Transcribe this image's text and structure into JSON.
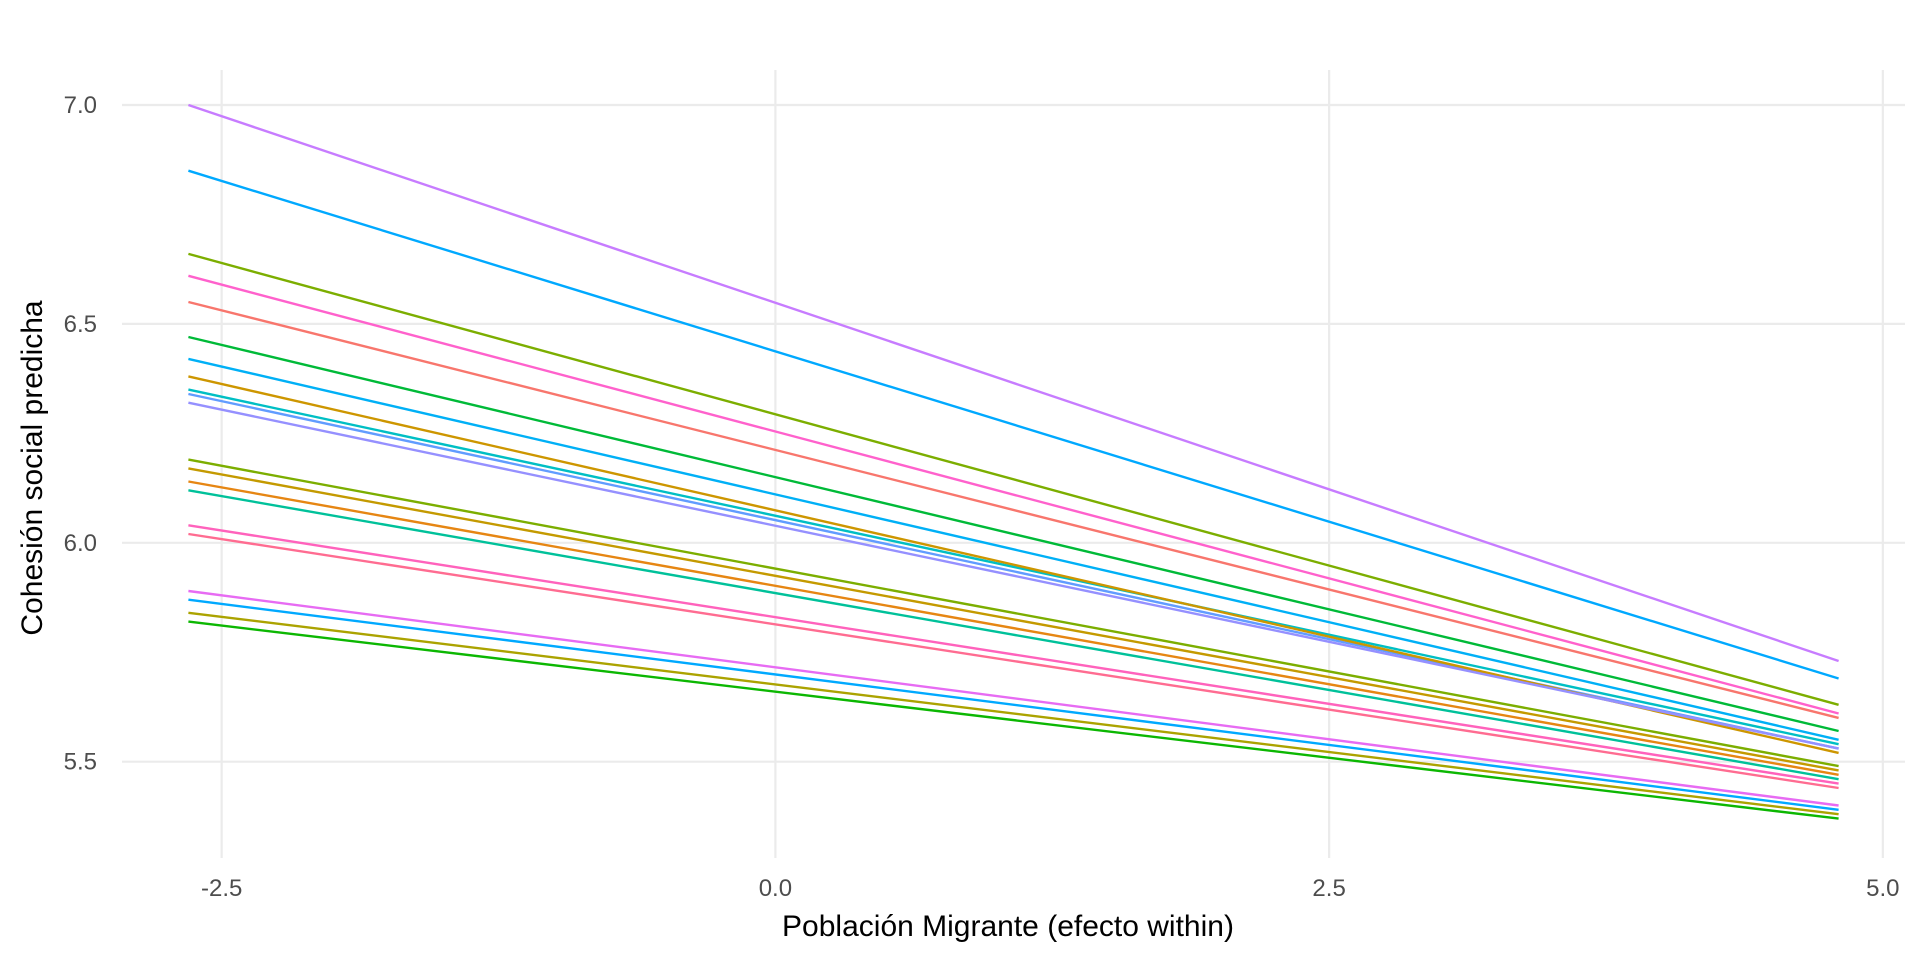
{
  "chart_data": {
    "type": "line",
    "title": "",
    "xlabel": "Población Migrante (efecto within)",
    "ylabel": "Cohesión social predicha",
    "xlim": [
      -2.95,
      5.1
    ],
    "ylim": [
      5.28,
      7.08
    ],
    "x_ticks": [
      -2.5,
      0.0,
      2.5,
      5.0
    ],
    "x_tick_labels": [
      "-2.5",
      "0.0",
      "2.5",
      "5.0"
    ],
    "y_ticks": [
      5.5,
      6.0,
      6.5,
      7.0
    ],
    "y_tick_labels": [
      "5.5",
      "6.0",
      "6.5",
      "7.0"
    ],
    "grid": true,
    "legend": "none",
    "x": [
      -2.65,
      4.8
    ],
    "series": [
      {
        "color": "#C77CFF",
        "values": [
          7.0,
          5.73
        ]
      },
      {
        "color": "#00A9FF",
        "values": [
          6.85,
          5.69
        ]
      },
      {
        "color": "#7CAE00",
        "values": [
          6.66,
          5.63
        ]
      },
      {
        "color": "#FF61CC",
        "values": [
          6.61,
          5.61
        ]
      },
      {
        "color": "#F8766D",
        "values": [
          6.55,
          5.6
        ]
      },
      {
        "color": "#00BA38",
        "values": [
          6.47,
          5.57
        ]
      },
      {
        "color": "#00B0F6",
        "values": [
          6.42,
          5.55
        ]
      },
      {
        "color": "#00BFC4",
        "values": [
          6.35,
          5.54
        ]
      },
      {
        "color": "#619CFF",
        "values": [
          6.34,
          5.53
        ]
      },
      {
        "color": "#CD9600",
        "values": [
          6.38,
          5.52
        ]
      },
      {
        "color": "#9590FF",
        "values": [
          6.32,
          5.53
        ]
      },
      {
        "color": "#7CAE00",
        "values": [
          6.19,
          5.49
        ]
      },
      {
        "color": "#C49A00",
        "values": [
          6.17,
          5.48
        ]
      },
      {
        "color": "#E68613",
        "values": [
          6.14,
          5.47
        ]
      },
      {
        "color": "#00C19A",
        "values": [
          6.12,
          5.46
        ]
      },
      {
        "color": "#FF62BC",
        "values": [
          6.04,
          5.45
        ]
      },
      {
        "color": "#FF6C91",
        "values": [
          6.02,
          5.44
        ]
      },
      {
        "color": "#E76BF3",
        "values": [
          5.89,
          5.4
        ]
      },
      {
        "color": "#00A9FF",
        "values": [
          5.87,
          5.39
        ]
      },
      {
        "color": "#ABA300",
        "values": [
          5.84,
          5.38
        ]
      },
      {
        "color": "#0CB702",
        "values": [
          5.82,
          5.37
        ]
      }
    ]
  }
}
